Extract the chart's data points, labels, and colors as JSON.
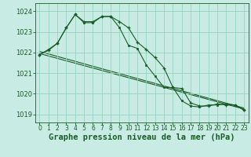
{
  "background_color": "#c8ece4",
  "grid_color": "#98d4c0",
  "line_color": "#1a5c28",
  "xlabel": "Graphe pression niveau de la mer (hPa)",
  "ylim": [
    1018.6,
    1024.4
  ],
  "xlim": [
    -0.5,
    23.5
  ],
  "yticks": [
    1019,
    1020,
    1021,
    1022,
    1023,
    1024
  ],
  "xticks": [
    0,
    1,
    2,
    3,
    4,
    5,
    6,
    7,
    8,
    9,
    10,
    11,
    12,
    13,
    14,
    15,
    16,
    17,
    18,
    19,
    20,
    21,
    22,
    23
  ],
  "s_plus_x": [
    0,
    1,
    2,
    3,
    4,
    5,
    6,
    7,
    8,
    9,
    10,
    11,
    12,
    13,
    14,
    15,
    16,
    17,
    18,
    19,
    20,
    21,
    22,
    23
  ],
  "s_plus_y": [
    1021.9,
    1022.1,
    1022.45,
    1023.2,
    1023.85,
    1023.5,
    1023.5,
    1023.75,
    1023.75,
    1023.5,
    1023.2,
    1022.5,
    1022.15,
    1021.75,
    1021.25,
    1020.3,
    1020.25,
    1019.55,
    1019.4,
    1019.4,
    1019.5,
    1019.45,
    1019.45,
    1019.2
  ],
  "s_sq_x": [
    0,
    1,
    2,
    3,
    4,
    5,
    6,
    7,
    8,
    9,
    10,
    11,
    12,
    13,
    14,
    15,
    16,
    17,
    18,
    19,
    20,
    21,
    22,
    23
  ],
  "s_sq_y": [
    1021.9,
    1022.15,
    1022.45,
    1023.2,
    1023.85,
    1023.45,
    1023.45,
    1023.75,
    1023.75,
    1023.2,
    1022.35,
    1022.2,
    1021.4,
    1020.85,
    1020.3,
    1020.3,
    1019.65,
    1019.4,
    1019.35,
    1019.45,
    1019.45,
    1019.5,
    1019.45,
    1019.2
  ],
  "s_line1_x": [
    0,
    23
  ],
  "s_line1_y": [
    1021.95,
    1019.25
  ],
  "s_line2_x": [
    0,
    23
  ],
  "s_line2_y": [
    1022.05,
    1019.3
  ]
}
